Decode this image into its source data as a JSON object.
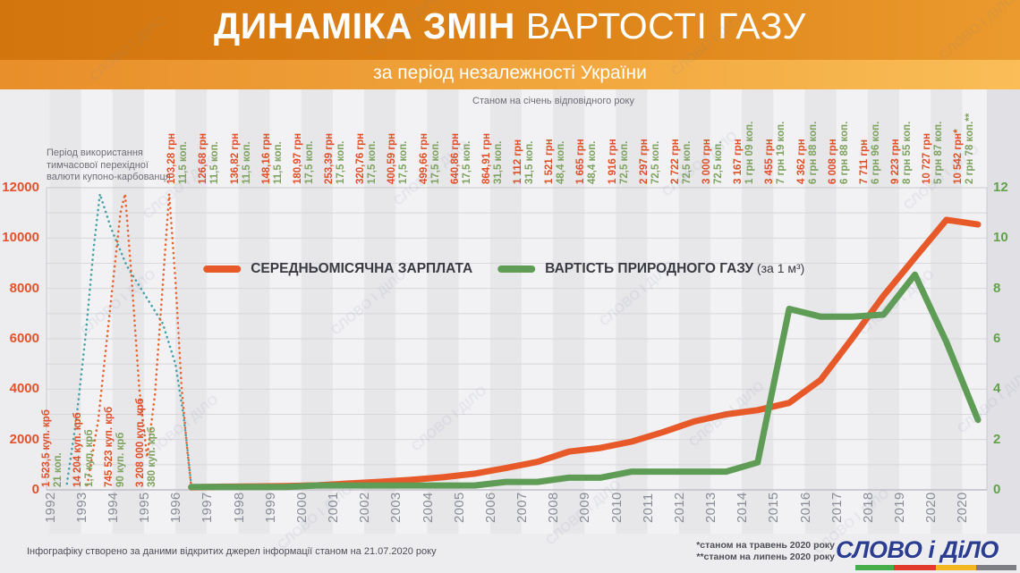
{
  "header": {
    "title_bold": "ДИНАМІКА ЗМІН",
    "title_rest": " ВАРТОСТІ ГАЗУ",
    "subtitle": "за період незалежності України"
  },
  "notes": {
    "left": "Період використання\nтимчасової перехідної\nвалюти купоно-карбованця",
    "top": "Станом на січень відповідного року"
  },
  "legend": {
    "salary": "СЕРЕДНЬОМІСЯЧНА ЗАРПЛАТА",
    "gas": "ВАРТІСТЬ ПРИРОДНОГО ГАЗУ",
    "gas_note": " (за 1 м³)"
  },
  "footer": {
    "source": "Інфографіку створено за даними відкритих джерел інформації станом на 21.07.2020 року",
    "note1": "*станом на травень 2020 року",
    "note2": "**станом на липень 2020 року",
    "logo_text": "СЛОВО і ДіЛО",
    "logo_color": "#2b3d90",
    "logo_stripe_colors": [
      "#45ad49",
      "#e23b2e",
      "#f3b821",
      "#7c7e83"
    ]
  },
  "watermark_text": "СЛОВО І ДІЛО",
  "chart_data": {
    "type": "line",
    "title": "ДИНАМІКА ЗМІН ВАРТОСТІ ГАЗУ за період незалежності України",
    "x_tick_labels": [
      "1992",
      "1993",
      "1994",
      "1995",
      "1996",
      "1997",
      "1998",
      "1999",
      "2000",
      "2001",
      "2002",
      "2003",
      "2004",
      "2005",
      "2006",
      "2007",
      "2008",
      "2009",
      "2010",
      "2011",
      "2012",
      "2013",
      "2014",
      "2015",
      "2016",
      "2017",
      "2018",
      "2019",
      "2020",
      "2020"
    ],
    "left_axis": {
      "ticks": [
        0,
        2000,
        4000,
        6000,
        8000,
        10000,
        12000
      ],
      "range": [
        0,
        12000
      ],
      "color": "#e2512c",
      "grid_step": 1000
    },
    "right_axis": {
      "ticks": [
        0,
        2,
        4,
        6,
        8,
        10,
        12
      ],
      "range": [
        0,
        12
      ],
      "color": "#63a04c"
    },
    "grid": true,
    "legend_position": "top-inside",
    "series": [
      {
        "name": "СЕРЕДНЬОМІСЯЧНА ЗАРПЛАТА",
        "color": "#e8592a",
        "label_color": "#df4f28",
        "axis": "left",
        "start_year": 1996,
        "values": [
          103.28,
          126.68,
          136.82,
          148.16,
          180.97,
          253.39,
          320.76,
          400.59,
          499.66,
          640.86,
          864.91,
          1112,
          1521,
          1665,
          1916,
          2297,
          2722,
          3000,
          3167,
          3455,
          4362,
          6008,
          7711,
          9223,
          10727,
          10542
        ],
        "labels": [
          "103,28 грн",
          "126,68 грн",
          "136,82 грн",
          "148,16 грн",
          "180,97 грн",
          "253,39 грн",
          "320,76 грн",
          "400,59 грн",
          "499,66 грн",
          "640,86 грн",
          "864,91 грн",
          "1 112 грн",
          "1 521 грн",
          "1 665 грн",
          "1 916 грн",
          "2 297 грн",
          "2 722 грн",
          "3 000 грн",
          "3 167 грн",
          "3 455 грн",
          "4 362 грн",
          "6 008 грн",
          "7 711 грн",
          "9 223 грн",
          "10 727 грн",
          "10 542 грн*"
        ]
      },
      {
        "name": "ВАРТІСТЬ ПРИРОДНОГО ГАЗУ (за 1 м³)",
        "color": "#5f9d56",
        "label_color": "#7ea25f",
        "axis": "right",
        "start_year": 1996,
        "values": [
          0.115,
          0.115,
          0.115,
          0.115,
          0.175,
          0.175,
          0.175,
          0.175,
          0.175,
          0.175,
          0.315,
          0.315,
          0.484,
          0.484,
          0.725,
          0.725,
          0.725,
          0.725,
          1.09,
          7.19,
          6.88,
          6.88,
          6.96,
          8.55,
          5.87,
          2.78
        ],
        "labels": [
          "11,5 коп.",
          "11,5 коп.",
          "11,5 коп.",
          "11,5 коп.",
          "17,5 коп.",
          "17,5 коп.",
          "17,5 коп.",
          "17,5 коп.",
          "17,5 коп.",
          "17,5 коп.",
          "31,5 коп.",
          "31,5 коп.",
          "48,4 коп.",
          "48,4 коп.",
          "72,5 коп.",
          "72,5 коп.",
          "72,5 коп.",
          "72,5 коп.",
          "1 грн 09 коп.",
          "7 грн 19 коп.",
          "6 грн 88 коп.",
          "6 грн 88 коп.",
          "6 грн 96 коп.",
          "8 грн 55 коп.",
          "5 грн 87 коп.",
          "2 грн 78 коп.**"
        ]
      }
    ],
    "karbovanets_era": {
      "years": [
        "1992",
        "1993",
        "1994",
        "1995"
      ],
      "salary_labels": [
        "1 523,5 куп. крб",
        "14 204 куп. крб",
        "745 523 куп. крб",
        "3 208 000 куп. крб"
      ],
      "gas_labels": [
        "21 коп.",
        "1,7 куп. крб",
        "90 куп. крб",
        "380 куп. крб"
      ],
      "salary_dot_color": "#e8622d",
      "gas_dot_color": "#47a1a6",
      "salary_curve": [
        [
          1992.7,
          200
        ],
        [
          1993.05,
          2800
        ],
        [
          1993.45,
          7500
        ],
        [
          1993.75,
          11000
        ],
        [
          1993.9,
          11750
        ],
        [
          1994.1,
          8500
        ],
        [
          1994.35,
          4000
        ],
        [
          1994.6,
          1300
        ],
        [
          1994.85,
          3800
        ],
        [
          1995.1,
          8200
        ],
        [
          1995.3,
          11750
        ],
        [
          1995.5,
          8300
        ],
        [
          1995.7,
          4000
        ],
        [
          1995.88,
          1500
        ],
        [
          1996,
          150
        ]
      ],
      "gas_curve": [
        [
          1992.05,
          250
        ],
        [
          1992.35,
          2800
        ],
        [
          1992.65,
          6200
        ],
        [
          1992.9,
          9600
        ],
        [
          1993.1,
          11750
        ],
        [
          1993.45,
          10400
        ],
        [
          1993.95,
          8900
        ],
        [
          1994.55,
          7700
        ],
        [
          1995.1,
          6600
        ],
        [
          1995.5,
          5000
        ],
        [
          1995.75,
          3000
        ],
        [
          1995.9,
          1400
        ],
        [
          1996,
          180
        ]
      ]
    },
    "style": {
      "stripe_even": "#e7e7ea",
      "stripe_odd": "#f2f2f4",
      "right_strip": "#e1e1e5",
      "gridline": "#d7d7dc",
      "plot_border": "#c9c9cf",
      "baseline": "#bfbfc6"
    }
  }
}
